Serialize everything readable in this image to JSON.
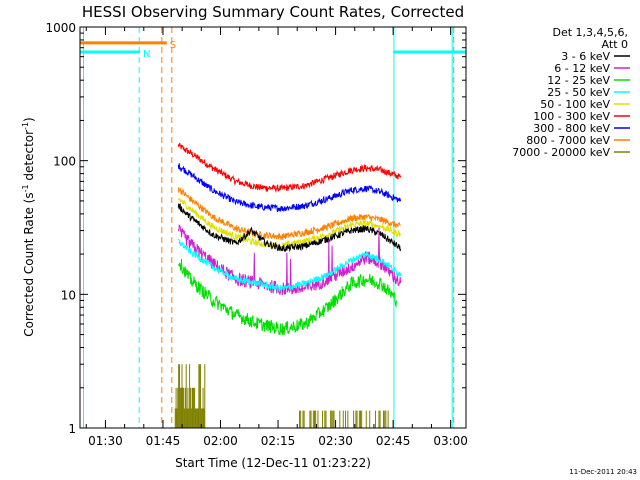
{
  "chart_data": {
    "type": "line",
    "title": "HESSI Observing Summary Count Rates, Corrected",
    "xlabel": "Start Time (12-Dec-11 01:23:22)",
    "ylabel_main": "Corrected Count Rate (s",
    "ylabel_sup1": "-1",
    "ylabel_mid": " detector",
    "ylabel_sup2": "-1",
    "ylabel_end": ")",
    "yscale": "log",
    "xlim_min": [
      83.37,
      184
    ],
    "ylim": [
      1,
      1000
    ],
    "x_ticks": [
      {
        "value": 90,
        "label": "01:30"
      },
      {
        "value": 105,
        "label": "01:45"
      },
      {
        "value": 120,
        "label": "02:00"
      },
      {
        "value": 135,
        "label": "02:15"
      },
      {
        "value": 150,
        "label": "02:30"
      },
      {
        "value": 165,
        "label": "02:45"
      },
      {
        "value": 180,
        "label": "03:00"
      }
    ],
    "y_ticks": [
      {
        "value": 1,
        "label": "1"
      },
      {
        "value": 10,
        "label": "10"
      },
      {
        "value": 100,
        "label": "100"
      },
      {
        "value": 1000,
        "label": "1000"
      }
    ],
    "legend": {
      "position": "right",
      "header_line1": "Det 1,3,4,5,6,",
      "header_line2": "Att 0",
      "entries": [
        {
          "label": "3 - 6 keV",
          "color": "#000000"
        },
        {
          "label": "6 - 12 keV",
          "color": "#d020d0"
        },
        {
          "label": "12 - 25 keV",
          "color": "#00e000"
        },
        {
          "label": "25 - 50 keV",
          "color": "#00ffff"
        },
        {
          "label": "50 - 100 keV",
          "color": "#e0e000"
        },
        {
          "label": "100 - 300 keV",
          "color": "#ff0000"
        },
        {
          "label": "300 - 800 keV",
          "color": "#0000ff"
        },
        {
          "label": "800 - 7000 keV",
          "color": "#ff8000"
        },
        {
          "label": "7000 - 20000 keV",
          "color": "#808000"
        }
      ]
    },
    "series": [
      {
        "color": "#ff0000",
        "x": [
          109,
          112,
          118,
          124,
          130,
          136,
          142,
          148,
          154,
          158,
          162,
          167
        ],
        "y": [
          130,
          115,
          88,
          70,
          63,
          62,
          65,
          74,
          85,
          88,
          85,
          75
        ]
      },
      {
        "color": "#0000ff",
        "x": [
          109,
          112,
          118,
          124,
          130,
          136,
          142,
          148,
          154,
          158,
          162,
          167
        ],
        "y": [
          92,
          80,
          60,
          49,
          45,
          44,
          46,
          52,
          60,
          62,
          58,
          50
        ]
      },
      {
        "color": "#ff8000",
        "x": [
          109,
          112,
          118,
          124,
          130,
          136,
          142,
          148,
          154,
          158,
          162,
          167
        ],
        "y": [
          62,
          52,
          38,
          31,
          28,
          27,
          29,
          32,
          37,
          38,
          36,
          32
        ]
      },
      {
        "color": "#e0e000",
        "x": [
          109,
          112,
          118,
          124,
          130,
          136,
          142,
          148,
          154,
          158,
          162,
          167
        ],
        "y": [
          52,
          44,
          32,
          27,
          24,
          23,
          25,
          28,
          33,
          34,
          32,
          28
        ]
      },
      {
        "color": "#000000",
        "x": [
          109,
          112,
          118,
          124,
          128,
          132,
          136,
          142,
          148,
          154,
          158,
          162,
          167
        ],
        "y": [
          46,
          38,
          28,
          24,
          30,
          24,
          22,
          23,
          26,
          30,
          31,
          28,
          22
        ]
      },
      {
        "color": "#d020d0",
        "x": [
          109,
          112,
          118,
          124,
          130,
          136,
          142,
          148,
          154,
          158,
          162,
          167
        ],
        "y": [
          30,
          24,
          17,
          13,
          12,
          11,
          11,
          13,
          16,
          19,
          17,
          12
        ]
      },
      {
        "color": "#00ffff",
        "x": [
          109,
          112,
          118,
          124,
          130,
          136,
          142,
          148,
          154,
          158,
          162,
          167
        ],
        "y": [
          25,
          21,
          16,
          13,
          12,
          11,
          12,
          14,
          18,
          20,
          18,
          14
        ]
      },
      {
        "color": "#00e000",
        "x": [
          109,
          112,
          118,
          124,
          130,
          136,
          142,
          148,
          154,
          158,
          162,
          166
        ],
        "y": [
          18,
          13,
          9,
          7,
          6,
          5.5,
          6,
          8,
          12,
          13,
          12,
          9
        ]
      }
    ],
    "top_bars": [
      {
        "label": "S",
        "color": "#ff8000",
        "x0": 83.37,
        "x1": 106,
        "y": 760
      },
      {
        "label": "N",
        "color": "#00ffff",
        "x0": 83.37,
        "x1": 99,
        "y": 650
      },
      {
        "label": "",
        "color": "#00ffff",
        "x0": 165,
        "x1": 184,
        "y": 650
      }
    ],
    "vlines": [
      {
        "x": 84.3,
        "color": "#00ffff",
        "dashed": false
      },
      {
        "x": 98.8,
        "color": "#00ffff",
        "dashed": true
      },
      {
        "x": 104.7,
        "color": "#ff8000",
        "dashed": true
      },
      {
        "x": 107.3,
        "color": "#ff8000",
        "dashed": true
      },
      {
        "x": 165.2,
        "color": "#00ffff",
        "dashed": false
      },
      {
        "x": 180.4,
        "color": "#00ffff",
        "dashed": false
      },
      {
        "x": 180.8,
        "color": "#ff8000",
        "dashed": true
      }
    ],
    "annotation": "11-Dec-2011 20:43"
  }
}
